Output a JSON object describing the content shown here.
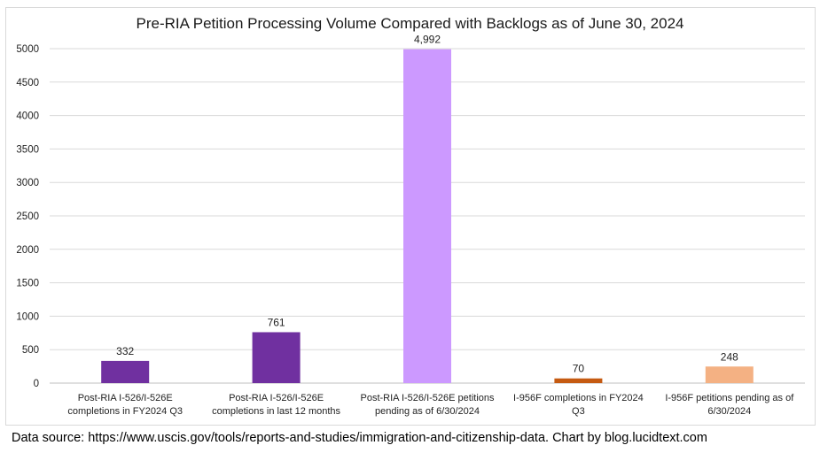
{
  "chart_data": {
    "type": "bar",
    "title": "Pre-RIA Petition Processing Volume Compared with Backlogs as of June 30, 2024",
    "categories": [
      [
        "Post-RIA I-526/I-526E",
        "completions in FY2024 Q3"
      ],
      [
        "Post-RIA I-526/I-526E",
        "completions in last 12 months"
      ],
      [
        "Post-RIA I-526/I-526E petitions",
        "pending as of 6/30/2024"
      ],
      [
        "I-956F completions in FY2024",
        "Q3"
      ],
      [
        "I-956F petitions pending as of",
        "6/30/2024"
      ]
    ],
    "values": [
      332,
      761,
      4992,
      70,
      248
    ],
    "data_labels": [
      "332",
      "761",
      "4,992",
      "70",
      "248"
    ],
    "colors": [
      "#7030a0",
      "#7030a0",
      "#cc99ff",
      "#c55a11",
      "#f4b183"
    ],
    "ylim": [
      0,
      5000
    ],
    "yticks": [
      0,
      500,
      1000,
      1500,
      2000,
      2500,
      3000,
      3500,
      4000,
      4500,
      5000
    ],
    "grid": true,
    "xlabel": "",
    "ylabel": ""
  },
  "source_note": "Data source: https://www.uscis.gov/tools/reports-and-studies/immigration-and-citizenship-data. Chart by blog.lucidtext.com"
}
